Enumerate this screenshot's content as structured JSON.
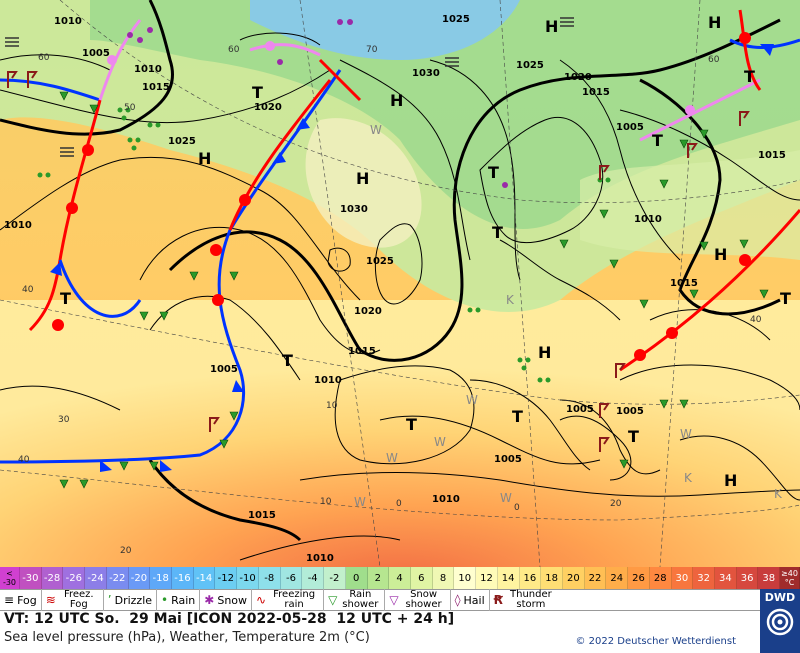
{
  "map": {
    "high_low_labels": [
      "H",
      "H",
      "H",
      "H",
      "H",
      "H",
      "H",
      "H",
      "T",
      "T",
      "T",
      "T",
      "T",
      "T",
      "T",
      "T",
      "T",
      "T",
      "T"
    ],
    "pressure_labels": [
      "1010",
      "1005",
      "1010",
      "1015",
      "1025",
      "1020",
      "1030",
      "1025",
      "1020",
      "1015",
      "1005",
      "1015",
      "1025",
      "1030",
      "1025",
      "1020",
      "1015",
      "1010",
      "1005",
      "1005",
      "1015",
      "1010",
      "1005",
      "1010",
      "1015",
      "1010",
      "1010",
      "1005"
    ],
    "temperature_labels": [
      "60",
      "60",
      "70",
      "60",
      "50",
      "40",
      "40",
      "30",
      "20",
      "10",
      "0",
      "40",
      "20",
      "10",
      "0"
    ],
    "cities_hint": [
      "K",
      "K",
      "K",
      "W",
      "W",
      "W",
      "W",
      "W",
      "W",
      "W"
    ]
  },
  "temperature_scale": {
    "first_top": "<",
    "first_bottom": "-30",
    "values": [
      "-30",
      "-28",
      "-26",
      "-24",
      "-22",
      "-20",
      "-18",
      "-16",
      "-14",
      "-12",
      "-10",
      "-8",
      "-6",
      "-4",
      "-2",
      "0",
      "2",
      "4",
      "6",
      "8",
      "10",
      "12",
      "14",
      "16",
      "18",
      "20",
      "22",
      "24",
      "26",
      "28",
      "30",
      "32",
      "34",
      "36",
      "38"
    ],
    "last_top": "≥40",
    "last_bottom": "°C",
    "colors": [
      "#c050c0",
      "#b060d0",
      "#9f70e0",
      "#8c7ee8",
      "#7a8cf0",
      "#6a9af6",
      "#5ea8f8",
      "#5cb6f8",
      "#60c2f6",
      "#6ccef2",
      "#7cd8ee",
      "#8ee0ea",
      "#a0e6e2",
      "#b2ecd8",
      "#c2f0cc",
      "#a0de8c",
      "#b6e690",
      "#ccee98",
      "#e0f4a4",
      "#f0f8b4",
      "#ffffd0",
      "#fffbb8",
      "#fff4a0",
      "#ffea88",
      "#ffde74",
      "#ffd062",
      "#ffbf54",
      "#ffad4a",
      "#ff9a44",
      "#ff8840",
      "#f8763e",
      "#ee643e",
      "#e2543e",
      "#d6483e",
      "#c83c3c",
      "#b83434"
    ]
  },
  "legend": {
    "items": [
      {
        "label": "Fog",
        "icon": "fog-icon"
      },
      {
        "label": "Freez. Fog",
        "icon": "freezing-fog-icon"
      },
      {
        "label": "Drizzle",
        "icon": "drizzle-icon"
      },
      {
        "label": "Rain",
        "icon": "rain-icon"
      },
      {
        "label": "Snow",
        "icon": "snow-icon"
      },
      {
        "label": "Freezing rain",
        "icon": "freezing-rain-icon"
      },
      {
        "label": "Rain shower",
        "icon": "rain-shower-icon"
      },
      {
        "label": "Snow shower",
        "icon": "snow-shower-icon"
      },
      {
        "label": "Hail",
        "icon": "hail-icon"
      },
      {
        "label": "Thunder storm",
        "icon": "thunderstorm-icon"
      }
    ]
  },
  "info": {
    "valid_time": "VT: 12 UTC So.  29 Mai [ICON 2022-05-28  12 UTC + 24 h]",
    "subtitle": "Sea level pressure (hPa), Weather, Temperature 2m (°C)",
    "copyright": "© 2022 Deutscher Wetterdienst"
  },
  "logo": {
    "text": "DWD"
  },
  "colors": {
    "warm_front": "#ff0000",
    "cold_front": "#0033ff",
    "occlusion": "#ee88ee",
    "dwd_blue": "#1a3f8a"
  }
}
